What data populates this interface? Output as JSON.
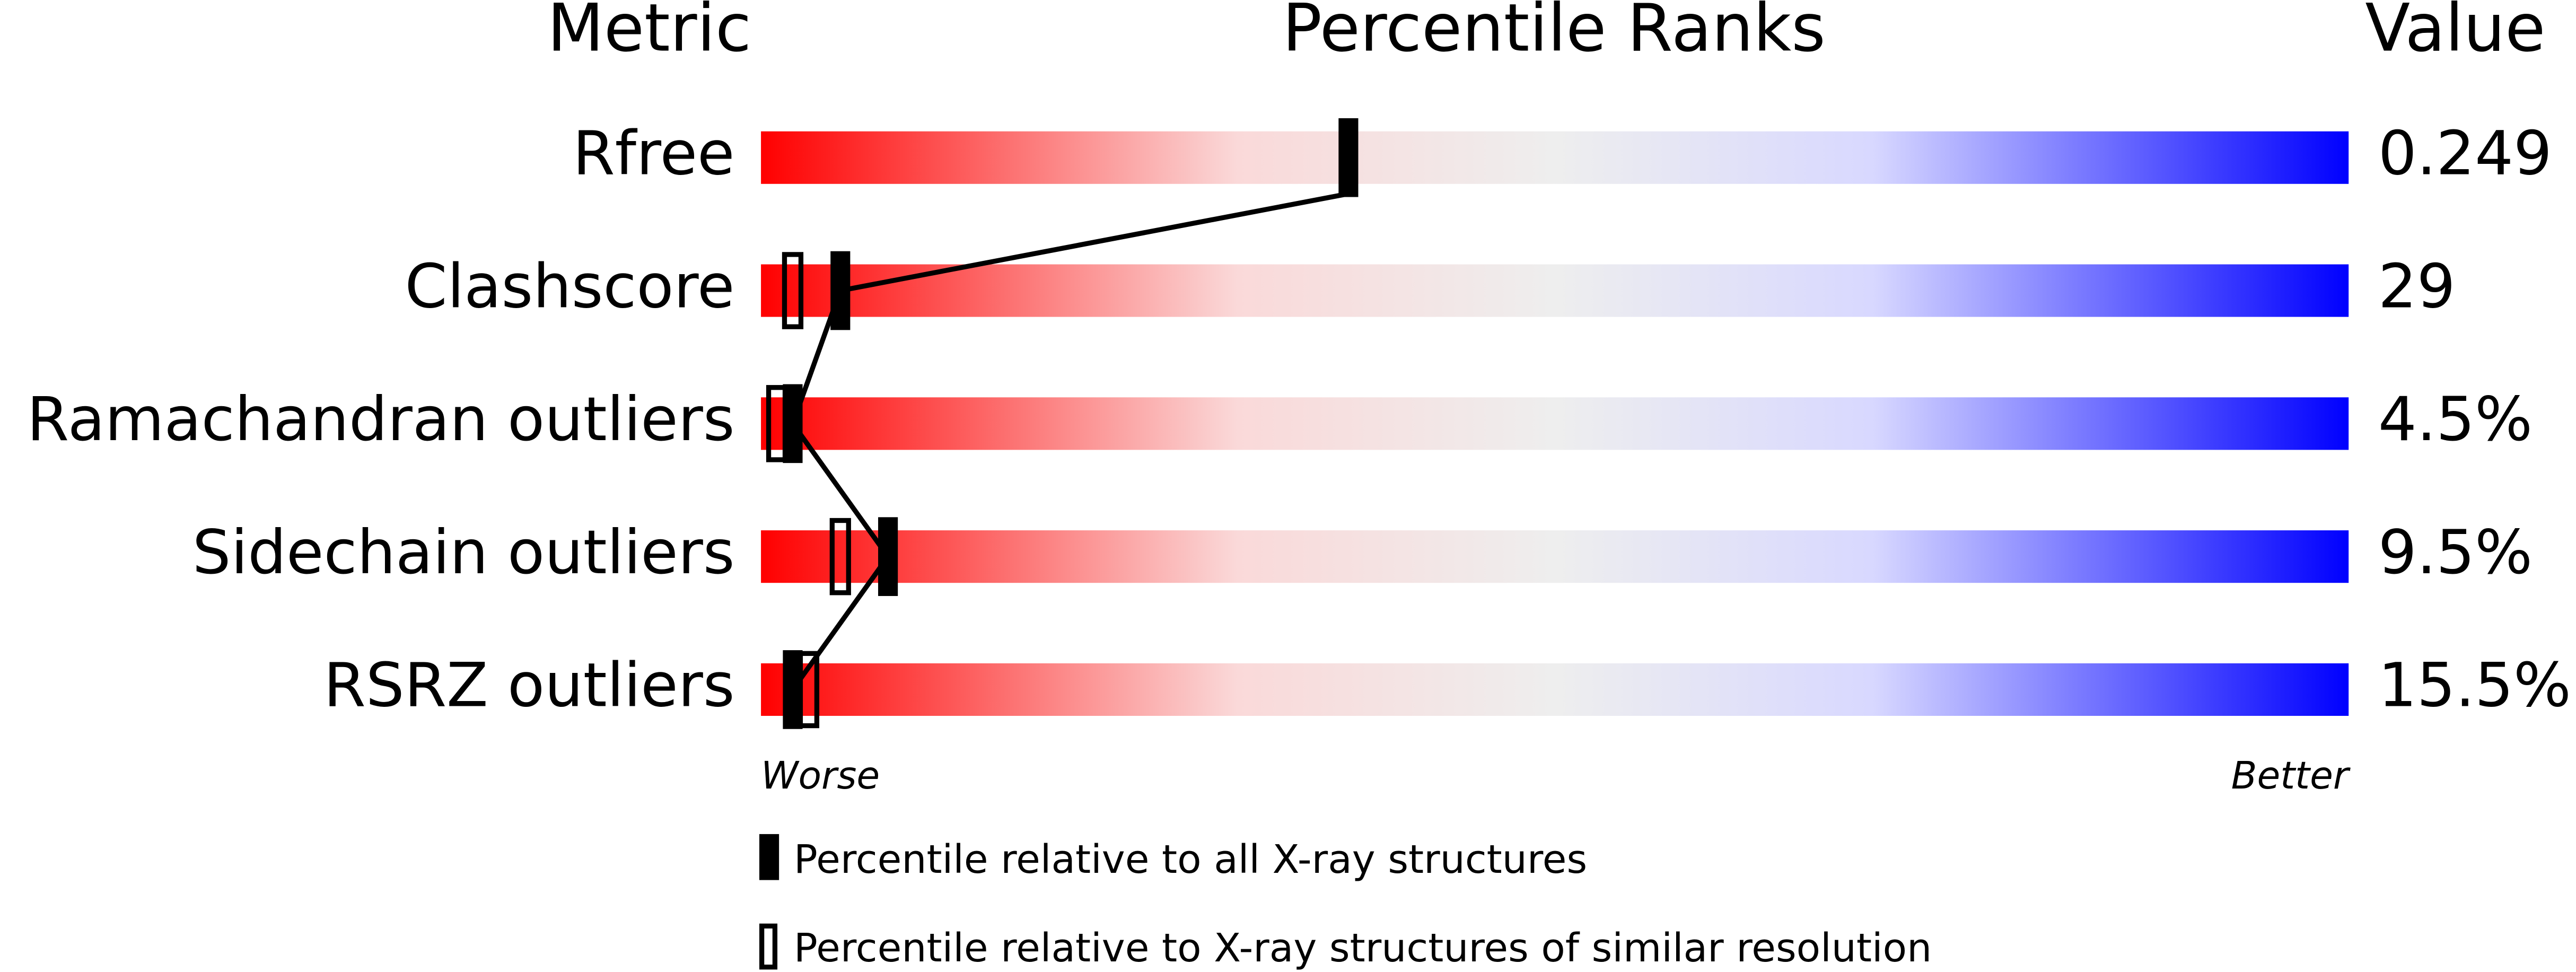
{
  "chart_data": {
    "type": "percentile",
    "headers": {
      "metric": "Metric",
      "ranks": "Percentile Ranks",
      "value": "Value"
    },
    "categories": [
      "Rfree",
      "Clashscore",
      "Ramachandran outliers",
      "Sidechain outliers",
      "RSRZ outliers"
    ],
    "value_labels": [
      "0.249",
      "29",
      "4.5%",
      "9.5%",
      "15.5%"
    ],
    "series": [
      {
        "name": "Percentile relative to all X-ray structures",
        "color": "#000000",
        "style": "filled",
        "values": [
          37,
          5,
          2,
          8,
          2
        ]
      },
      {
        "name": "Percentile relative to X-ray structures of similar resolution",
        "color": "#000000",
        "style": "open",
        "values": [
          null,
          2,
          1,
          5,
          3
        ]
      }
    ],
    "xlim": [
      0,
      100
    ],
    "xlabel_low": "Worse",
    "xlabel_high": "Better"
  }
}
